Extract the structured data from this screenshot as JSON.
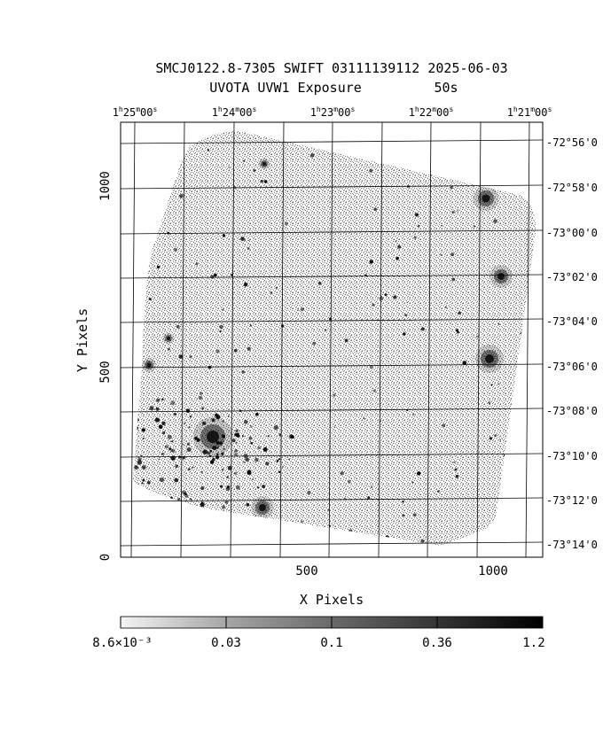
{
  "title_line1": "SMCJ0122.8-7305 SWIFT 03111139112 2025-06-03",
  "title_line2_left": "UVOTA UVW1 Exposure",
  "title_line2_right": "50s",
  "ra_ticks": [
    {
      "h": "1",
      "m": "25",
      "s": "00"
    },
    {
      "h": "1",
      "m": "24",
      "s": "00"
    },
    {
      "h": "1",
      "m": "23",
      "s": "00"
    },
    {
      "h": "1",
      "m": "22",
      "s": "00"
    },
    {
      "h": "1",
      "m": "21",
      "s": "00"
    }
  ],
  "dec_ticks": [
    "-72°56'0",
    "-72°58'0",
    "-73°00'0",
    "-73°02'0",
    "-73°04'0",
    "-73°06'0",
    "-73°08'0",
    "-73°10'0",
    "-73°12'0",
    "-73°14'0"
  ],
  "x_axis": {
    "label": "X Pixels",
    "ticks": [
      "500",
      "1000"
    ]
  },
  "y_axis": {
    "label": "Y Pixels",
    "ticks": [
      "0",
      "500",
      "1000"
    ]
  },
  "colorbar": {
    "ticks": [
      "8.6×10⁻³",
      "0.03",
      "0.1",
      "0.36",
      "1.2"
    ]
  },
  "colors": {
    "background": "#ffffff",
    "noise": "#7a7a7a",
    "source": "#000000"
  }
}
